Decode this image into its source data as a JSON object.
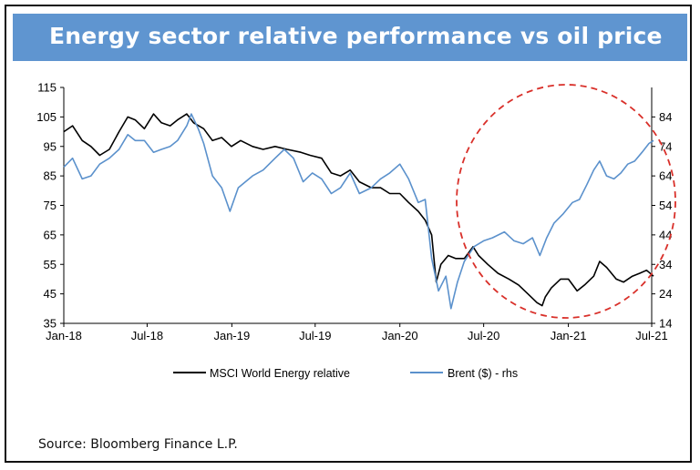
{
  "title": "Energy sector relative performance vs oil price",
  "source": "Source: Bloomberg Finance L.P.",
  "colors": {
    "banner": "#5f95d0",
    "energy": "#000000",
    "brent": "#5b91cc",
    "highlight_circle": "#d9302a"
  },
  "chart_data": {
    "type": "line",
    "title": "Energy sector relative performance vs oil price",
    "x_tick_labels": [
      "Jan-18",
      "Jul-18",
      "Jan-19",
      "Jul-19",
      "Jan-20",
      "Jul-20",
      "Jan-21",
      "Jul-21"
    ],
    "y_left": {
      "ylim": [
        35,
        115
      ],
      "ticks": [
        35,
        45,
        55,
        65,
        75,
        85,
        95,
        105,
        115
      ]
    },
    "y_right": {
      "ylim": [
        14,
        94
      ],
      "ticks": [
        14,
        24,
        34,
        44,
        54,
        64,
        74,
        84
      ]
    },
    "grid": false,
    "legend_position": "bottom",
    "series": [
      {
        "name": "MSCI World Energy relative",
        "axis": "left",
        "points": [
          [
            "2018-01-01",
            100
          ],
          [
            "2018-01-20",
            102
          ],
          [
            "2018-02-10",
            97
          ],
          [
            "2018-03-01",
            95
          ],
          [
            "2018-03-20",
            92
          ],
          [
            "2018-04-10",
            94
          ],
          [
            "2018-05-01",
            100
          ],
          [
            "2018-05-20",
            105
          ],
          [
            "2018-06-05",
            104
          ],
          [
            "2018-06-25",
            101
          ],
          [
            "2018-07-15",
            106
          ],
          [
            "2018-08-01",
            103
          ],
          [
            "2018-08-20",
            102
          ],
          [
            "2018-09-05",
            104
          ],
          [
            "2018-09-25",
            106
          ],
          [
            "2018-10-10",
            103
          ],
          [
            "2018-11-01",
            101
          ],
          [
            "2018-11-20",
            97
          ],
          [
            "2018-12-10",
            98
          ],
          [
            "2018-12-31",
            95
          ],
          [
            "2019-01-20",
            97
          ],
          [
            "2019-02-15",
            95
          ],
          [
            "2019-03-10",
            94
          ],
          [
            "2019-04-05",
            95
          ],
          [
            "2019-05-01",
            94
          ],
          [
            "2019-05-31",
            93
          ],
          [
            "2019-06-20",
            92
          ],
          [
            "2019-07-15",
            91
          ],
          [
            "2019-08-05",
            86
          ],
          [
            "2019-08-25",
            85
          ],
          [
            "2019-09-15",
            87
          ],
          [
            "2019-10-05",
            83
          ],
          [
            "2019-10-31",
            81
          ],
          [
            "2019-11-20",
            81
          ],
          [
            "2019-12-10",
            79
          ],
          [
            "2020-01-01",
            79
          ],
          [
            "2020-01-20",
            76
          ],
          [
            "2020-02-10",
            73
          ],
          [
            "2020-02-25",
            70
          ],
          [
            "2020-03-10",
            65
          ],
          [
            "2020-03-20",
            49
          ],
          [
            "2020-03-30",
            55
          ],
          [
            "2020-04-15",
            58
          ],
          [
            "2020-05-01",
            57
          ],
          [
            "2020-05-20",
            57
          ],
          [
            "2020-06-08",
            61
          ],
          [
            "2020-06-20",
            58
          ],
          [
            "2020-07-10",
            55
          ],
          [
            "2020-08-01",
            52
          ],
          [
            "2020-08-25",
            50
          ],
          [
            "2020-09-15",
            48
          ],
          [
            "2020-10-05",
            45
          ],
          [
            "2020-10-25",
            42
          ],
          [
            "2020-11-05",
            41
          ],
          [
            "2020-11-12",
            44
          ],
          [
            "2020-11-25",
            47
          ],
          [
            "2020-12-15",
            50
          ],
          [
            "2021-01-01",
            50
          ],
          [
            "2021-01-20",
            46
          ],
          [
            "2021-02-05",
            48
          ],
          [
            "2021-02-25",
            51
          ],
          [
            "2021-03-10",
            56
          ],
          [
            "2021-03-25",
            54
          ],
          [
            "2021-04-15",
            50
          ],
          [
            "2021-05-01",
            49
          ],
          [
            "2021-05-20",
            51
          ],
          [
            "2021-06-05",
            52
          ],
          [
            "2021-06-20",
            53
          ],
          [
            "2021-07-05",
            51
          ]
        ]
      },
      {
        "name": "Brent ($) - rhs",
        "axis": "right",
        "points": [
          [
            "2018-01-01",
            67
          ],
          [
            "2018-01-20",
            70
          ],
          [
            "2018-02-10",
            63
          ],
          [
            "2018-03-01",
            64
          ],
          [
            "2018-03-20",
            68
          ],
          [
            "2018-04-10",
            70
          ],
          [
            "2018-05-01",
            73
          ],
          [
            "2018-05-20",
            78
          ],
          [
            "2018-06-05",
            76
          ],
          [
            "2018-06-25",
            76
          ],
          [
            "2018-07-15",
            72
          ],
          [
            "2018-08-01",
            73
          ],
          [
            "2018-08-20",
            74
          ],
          [
            "2018-09-05",
            76
          ],
          [
            "2018-09-25",
            81
          ],
          [
            "2018-10-05",
            85
          ],
          [
            "2018-10-20",
            80
          ],
          [
            "2018-11-01",
            75
          ],
          [
            "2018-11-20",
            64
          ],
          [
            "2018-12-10",
            60
          ],
          [
            "2018-12-28",
            52
          ],
          [
            "2019-01-15",
            60
          ],
          [
            "2019-02-15",
            64
          ],
          [
            "2019-03-10",
            66
          ],
          [
            "2019-04-05",
            70
          ],
          [
            "2019-04-25",
            73
          ],
          [
            "2019-05-15",
            70
          ],
          [
            "2019-06-05",
            62
          ],
          [
            "2019-06-25",
            65
          ],
          [
            "2019-07-15",
            63
          ],
          [
            "2019-08-05",
            58
          ],
          [
            "2019-08-25",
            60
          ],
          [
            "2019-09-15",
            65
          ],
          [
            "2019-10-05",
            58
          ],
          [
            "2019-10-31",
            60
          ],
          [
            "2019-11-20",
            63
          ],
          [
            "2019-12-10",
            65
          ],
          [
            "2020-01-01",
            68
          ],
          [
            "2020-01-20",
            63
          ],
          [
            "2020-02-10",
            55
          ],
          [
            "2020-02-25",
            56
          ],
          [
            "2020-03-10",
            36
          ],
          [
            "2020-03-25",
            25
          ],
          [
            "2020-04-10",
            30
          ],
          [
            "2020-04-21",
            19
          ],
          [
            "2020-05-05",
            28
          ],
          [
            "2020-05-20",
            35
          ],
          [
            "2020-06-10",
            40
          ],
          [
            "2020-07-01",
            42
          ],
          [
            "2020-07-20",
            43
          ],
          [
            "2020-08-15",
            45
          ],
          [
            "2020-09-05",
            42
          ],
          [
            "2020-09-25",
            41
          ],
          [
            "2020-10-15",
            43
          ],
          [
            "2020-10-31",
            37
          ],
          [
            "2020-11-15",
            43
          ],
          [
            "2020-12-01",
            48
          ],
          [
            "2020-12-20",
            51
          ],
          [
            "2021-01-10",
            55
          ],
          [
            "2021-01-25",
            56
          ],
          [
            "2021-02-10",
            61
          ],
          [
            "2021-02-25",
            66
          ],
          [
            "2021-03-10",
            69
          ],
          [
            "2021-03-25",
            64
          ],
          [
            "2021-04-10",
            63
          ],
          [
            "2021-04-25",
            65
          ],
          [
            "2021-05-10",
            68
          ],
          [
            "2021-05-25",
            69
          ],
          [
            "2021-06-10",
            72
          ],
          [
            "2021-06-25",
            75
          ],
          [
            "2021-07-05",
            76
          ]
        ]
      }
    ]
  }
}
